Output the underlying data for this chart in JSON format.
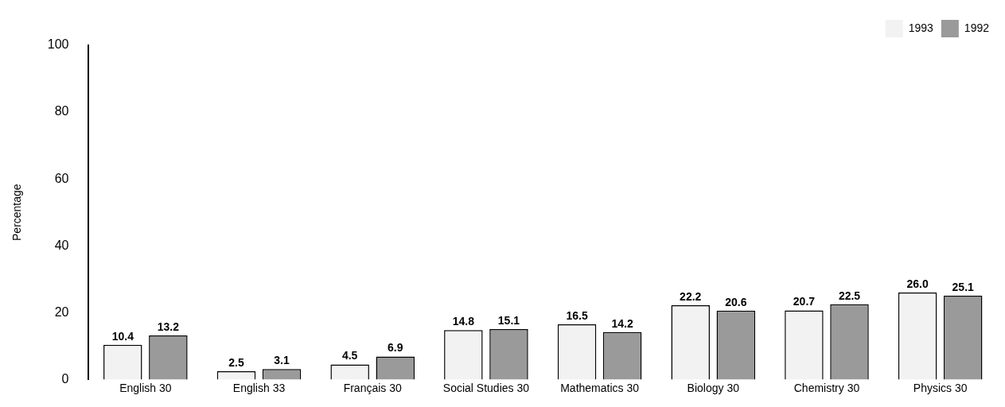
{
  "chart_data": {
    "type": "bar",
    "ylabel": "Percentage",
    "categories": [
      "English 30",
      "English 33",
      "Français 30",
      "Social Studies 30",
      "Mathematics 30",
      "Biology 30",
      "Chemistry 30",
      "Physics 30"
    ],
    "series": [
      {
        "name": "1993",
        "color": "#f2f2f2",
        "values": [
          10.4,
          2.5,
          4.5,
          14.8,
          16.5,
          22.2,
          20.7,
          26.0
        ],
        "value_labels": [
          "10.4",
          "2.5",
          "4.5",
          "14.8",
          "16.5",
          "22.2",
          "20.7",
          "26.0"
        ]
      },
      {
        "name": "1992",
        "color": "#9a9a9a",
        "values": [
          13.2,
          3.1,
          6.9,
          15.1,
          14.2,
          20.6,
          22.5,
          25.1
        ],
        "value_labels": [
          "13.2",
          "3.1",
          "6.9",
          "15.1",
          "14.2",
          "20.6",
          "22.5",
          "25.1"
        ]
      }
    ],
    "ylim": [
      0,
      100
    ],
    "yticks": [
      0,
      20,
      40,
      60,
      80,
      100
    ],
    "grid": false,
    "legend": "top right"
  }
}
